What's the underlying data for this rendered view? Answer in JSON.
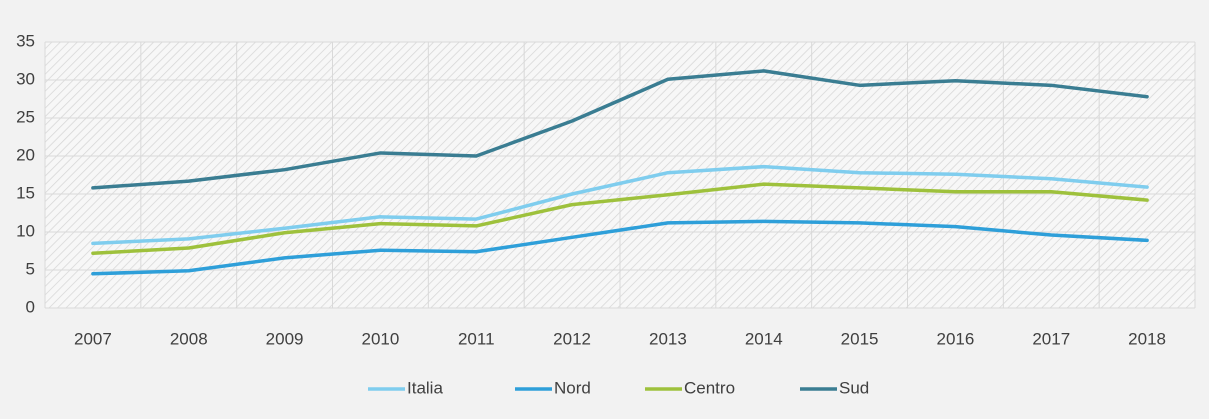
{
  "chart_data": {
    "type": "line",
    "categories": [
      "2007",
      "2008",
      "2009",
      "2010",
      "2011",
      "2012",
      "2013",
      "2014",
      "2015",
      "2016",
      "2017",
      "2018"
    ],
    "series": [
      {
        "name": "Italia",
        "color": "#7fcdee",
        "values": [
          8.5,
          9.1,
          10.5,
          12.0,
          11.7,
          15.0,
          17.8,
          18.6,
          17.8,
          17.6,
          17.0,
          15.9
        ]
      },
      {
        "name": "Nord",
        "color": "#2e9fd9",
        "values": [
          4.5,
          4.9,
          6.6,
          7.6,
          7.4,
          9.3,
          11.2,
          11.4,
          11.2,
          10.7,
          9.6,
          8.9
        ]
      },
      {
        "name": "Centro",
        "color": "#9ec13c",
        "values": [
          7.2,
          7.9,
          9.9,
          11.1,
          10.8,
          13.6,
          14.9,
          16.3,
          15.8,
          15.3,
          15.3,
          14.2
        ]
      },
      {
        "name": "Sud",
        "color": "#3a7d92",
        "values": [
          15.8,
          16.7,
          18.2,
          20.4,
          20.0,
          24.6,
          30.1,
          31.2,
          29.3,
          29.9,
          29.3,
          27.8
        ]
      }
    ],
    "ylim": [
      0,
      35
    ],
    "yticks": [
      0,
      5,
      10,
      15,
      20,
      25,
      30,
      35
    ],
    "grid": true,
    "legend": "bottom"
  }
}
